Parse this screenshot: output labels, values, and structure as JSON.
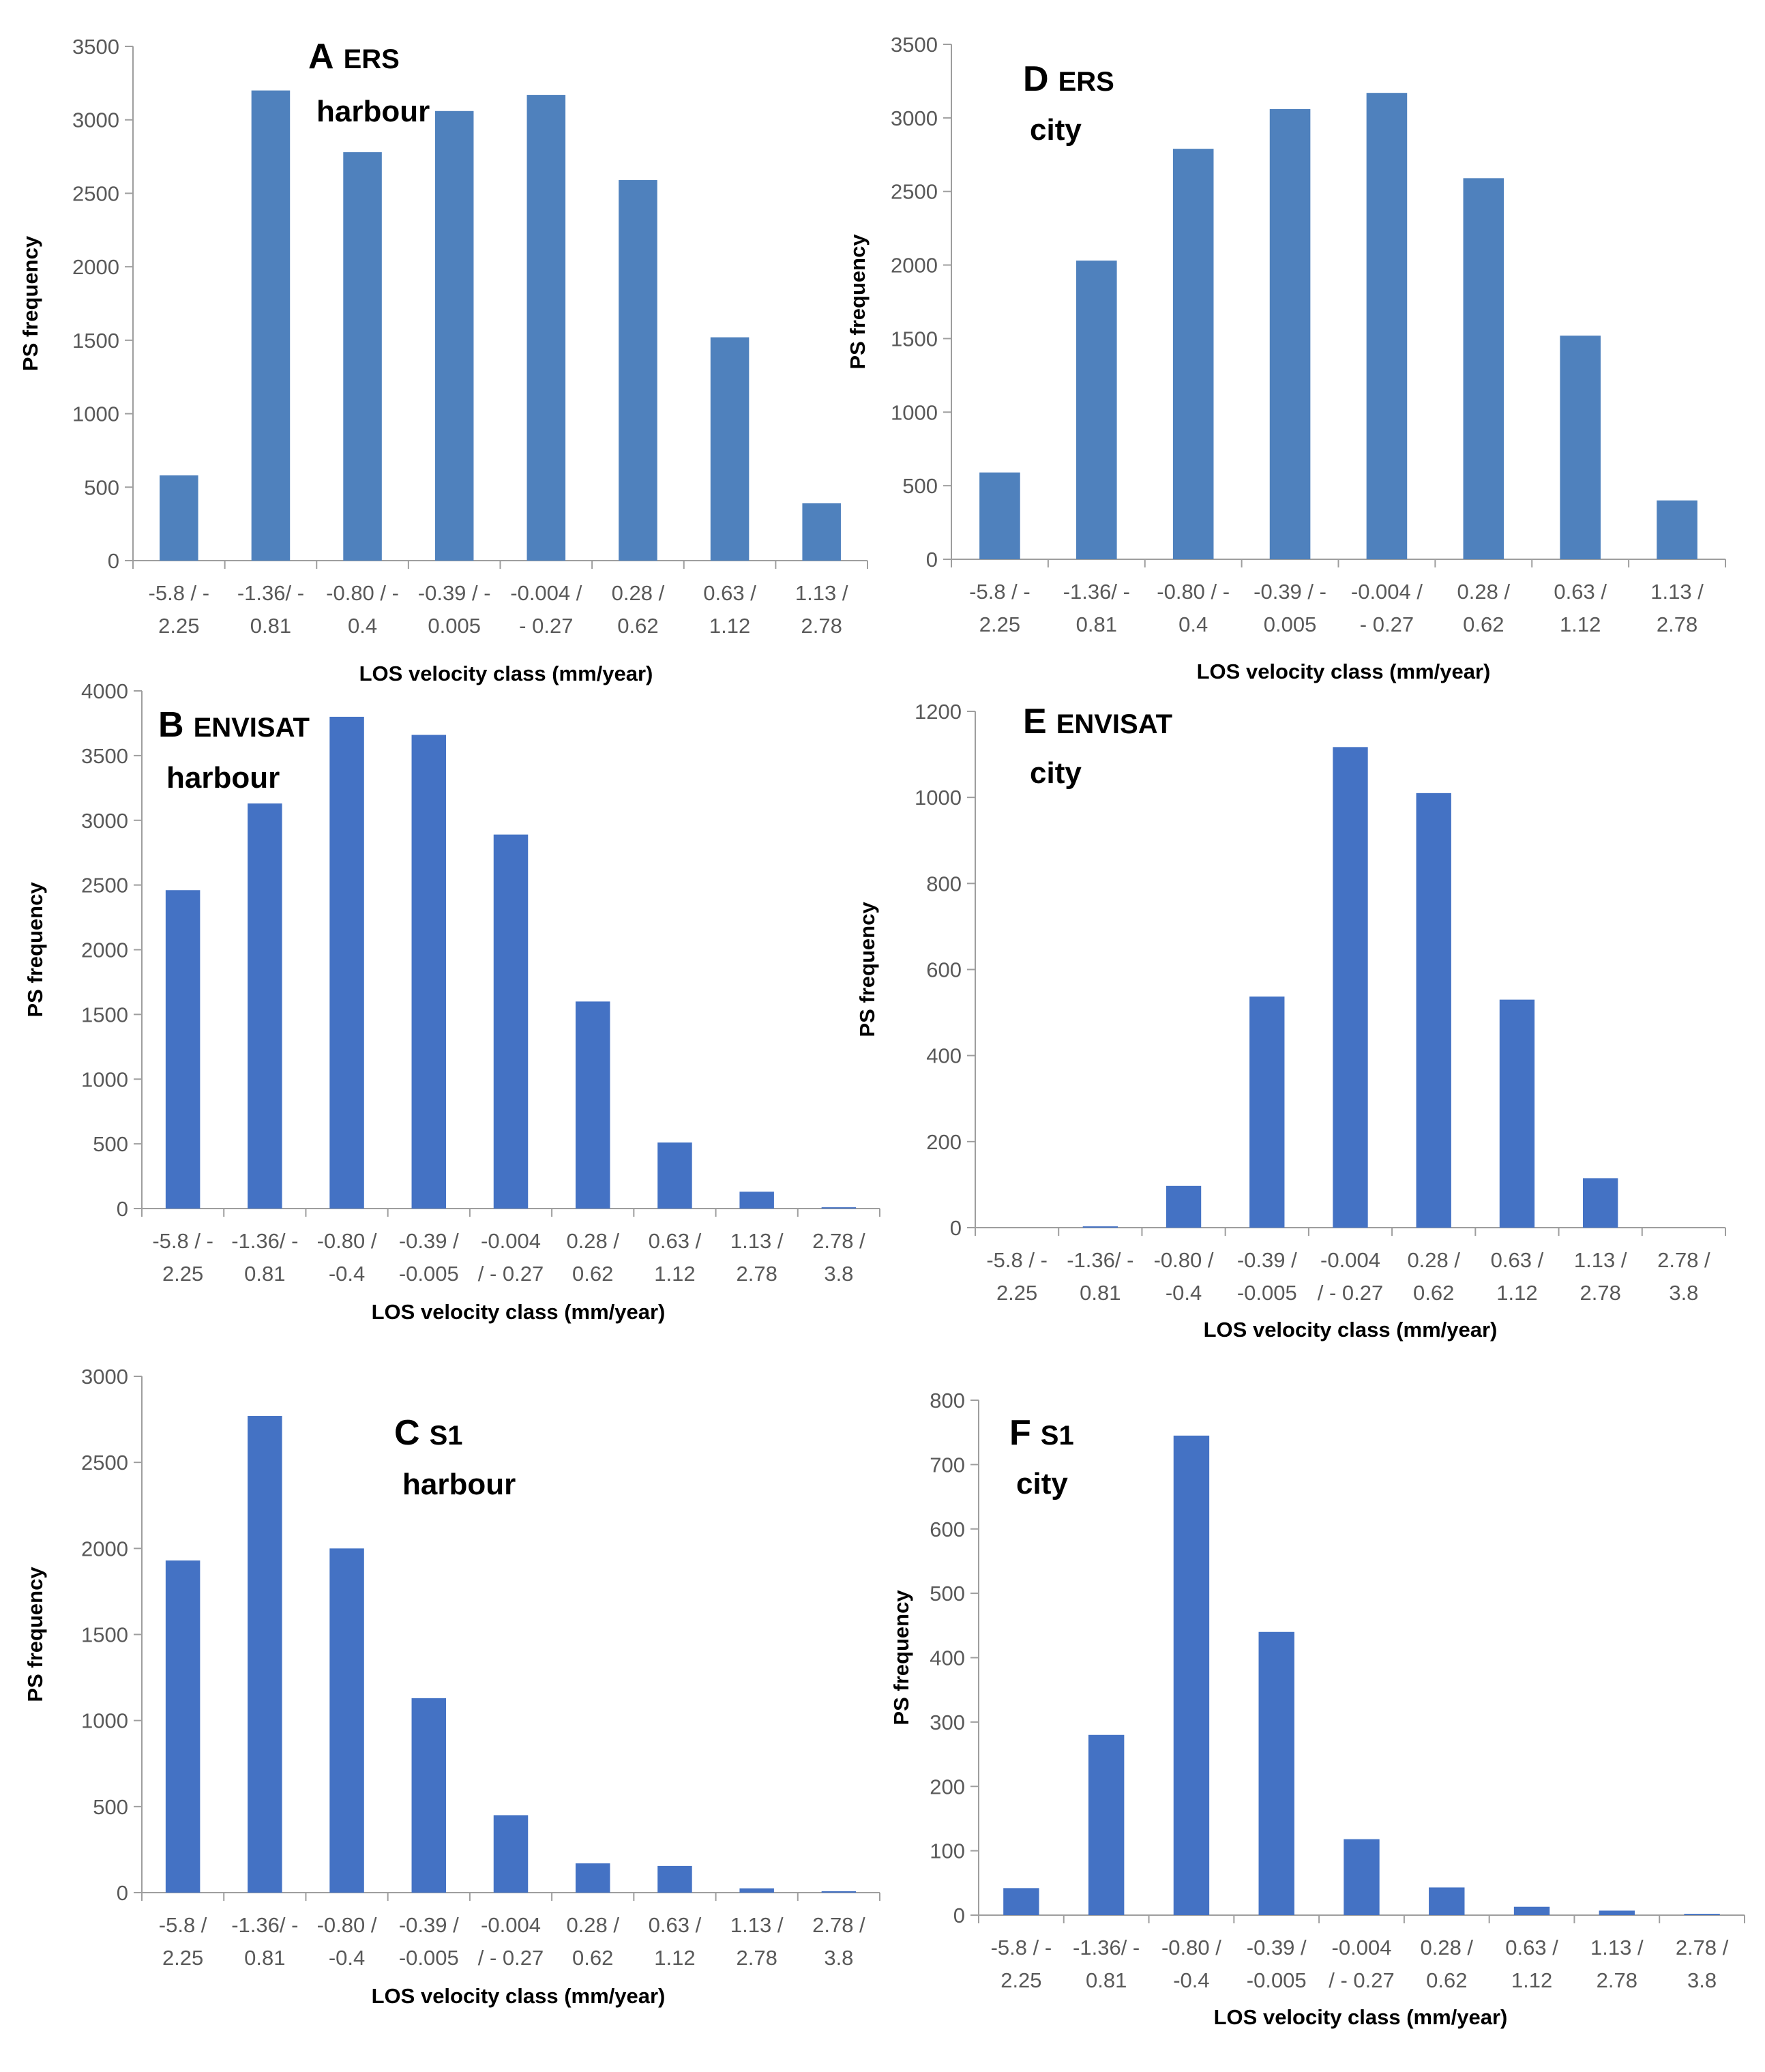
{
  "chart_data": [
    {
      "type": "bar",
      "panel_letter": "A",
      "panel_sensor": "ERS",
      "panel_region": "harbour",
      "ylabel": "PS frequency",
      "xlabel": "LOS velocity class (mm/year)",
      "ylim": [
        0,
        3500
      ],
      "yticks": [
        "0",
        "500",
        "1000",
        "1500",
        "2000",
        "2500",
        "3000",
        "3500"
      ],
      "categories": [
        [
          "-5.8 / -",
          "2.25"
        ],
        [
          "-1.36/ -",
          "0.81"
        ],
        [
          "-0.80 / -",
          "0.4"
        ],
        [
          "-0.39 / -",
          "0.005"
        ],
        [
          "-0.004 /",
          "- 0.27"
        ],
        [
          "0.28 /",
          "0.62"
        ],
        [
          "0.63 /",
          "1.12"
        ],
        [
          "1.13 /",
          "2.78"
        ]
      ],
      "values": [
        580,
        3200,
        2780,
        3060,
        3170,
        2590,
        1520,
        390
      ],
      "bar_color": "#4f81bd"
    },
    {
      "type": "bar",
      "panel_letter": "B",
      "panel_sensor": "ENVISAT",
      "panel_region": "harbour",
      "ylabel": "PS frequency",
      "xlabel": "LOS velocity class (mm/year)",
      "ylim": [
        0,
        4000
      ],
      "yticks": [
        "0",
        "500",
        "1000",
        "1500",
        "2000",
        "2500",
        "3000",
        "3500",
        "4000"
      ],
      "categories": [
        [
          "-5.8 / -",
          "2.25"
        ],
        [
          "-1.36/ -",
          "0.81"
        ],
        [
          "-0.80 /",
          "-0.4"
        ],
        [
          "-0.39 /",
          "-0.005"
        ],
        [
          "-0.004",
          "/ - 0.27"
        ],
        [
          "0.28 /",
          "0.62"
        ],
        [
          "0.63 /",
          "1.12"
        ],
        [
          "1.13 /",
          "2.78"
        ],
        [
          "2.78 /",
          "3.8"
        ]
      ],
      "values": [
        2460,
        3130,
        3800,
        3660,
        2890,
        1600,
        510,
        130,
        10
      ],
      "bar_color": "#4472c4"
    },
    {
      "type": "bar",
      "panel_letter": "C",
      "panel_sensor": "S1",
      "panel_region": "harbour",
      "ylabel": "PS frequency",
      "xlabel": "LOS velocity class (mm/year)",
      "ylim": [
        0,
        3000
      ],
      "yticks": [
        "0",
        "500",
        "1000",
        "1500",
        "2000",
        "2500",
        "3000"
      ],
      "categories": [
        [
          "-5.8 /",
          "2.25"
        ],
        [
          "-1.36/ -",
          "0.81"
        ],
        [
          "-0.80 /",
          "-0.4"
        ],
        [
          "-0.39 /",
          "-0.005"
        ],
        [
          "-0.004",
          "/ - 0.27"
        ],
        [
          "0.28 /",
          "0.62"
        ],
        [
          "0.63 /",
          "1.12"
        ],
        [
          "1.13 /",
          "2.78"
        ],
        [
          "2.78 /",
          "3.8"
        ]
      ],
      "values": [
        1930,
        2770,
        2000,
        1130,
        450,
        170,
        155,
        25,
        8
      ],
      "bar_color": "#4472c4"
    },
    {
      "type": "bar",
      "panel_letter": "D",
      "panel_sensor": "ERS",
      "panel_region": "city",
      "ylabel": "PS frequency",
      "xlabel": "LOS velocity class (mm/year)",
      "ylim": [
        0,
        3500
      ],
      "yticks": [
        "0",
        "500",
        "1000",
        "1500",
        "2000",
        "2500",
        "3000",
        "3500"
      ],
      "categories": [
        [
          "-5.8 / -",
          "2.25"
        ],
        [
          "-1.36/ -",
          "0.81"
        ],
        [
          "-0.80 / -",
          "0.4"
        ],
        [
          "-0.39 / -",
          "0.005"
        ],
        [
          "-0.004 /",
          "- 0.27"
        ],
        [
          "0.28 /",
          "0.62"
        ],
        [
          "0.63 /",
          "1.12"
        ],
        [
          "1.13 /",
          "2.78"
        ]
      ],
      "values": [
        590,
        2030,
        2790,
        3060,
        3170,
        2590,
        1520,
        400
      ],
      "bar_color": "#4f81bd"
    },
    {
      "type": "bar",
      "panel_letter": "E",
      "panel_sensor": "ENVISAT",
      "panel_region": "city",
      "ylabel": "PS frequency",
      "xlabel": "LOS velocity class (mm/year)",
      "ylim": [
        0,
        1200
      ],
      "yticks": [
        "0",
        "200",
        "400",
        "600",
        "800",
        "1000",
        "1200"
      ],
      "categories": [
        [
          "-5.8 / -",
          "2.25"
        ],
        [
          "-1.36/ -",
          "0.81"
        ],
        [
          "-0.80 /",
          "-0.4"
        ],
        [
          "-0.39 /",
          "-0.005"
        ],
        [
          "-0.004",
          "/ - 0.27"
        ],
        [
          "0.28 /",
          "0.62"
        ],
        [
          "0.63 /",
          "1.12"
        ],
        [
          "1.13 /",
          "2.78"
        ],
        [
          "2.78 /",
          "3.8"
        ]
      ],
      "values": [
        0,
        3,
        97,
        537,
        1117,
        1010,
        530,
        115,
        0
      ],
      "bar_color": "#4472c4"
    },
    {
      "type": "bar",
      "panel_letter": "F",
      "panel_sensor": "S1",
      "panel_region": "city",
      "ylabel": "PS frequency",
      "xlabel": "LOS velocity class (mm/year)",
      "ylim": [
        0,
        800
      ],
      "yticks": [
        "0",
        "100",
        "200",
        "300",
        "400",
        "500",
        "600",
        "700",
        "800"
      ],
      "categories": [
        [
          "-5.8 / -",
          "2.25"
        ],
        [
          "-1.36/ -",
          "0.81"
        ],
        [
          "-0.80 /",
          "-0.4"
        ],
        [
          "-0.39 /",
          "-0.005"
        ],
        [
          "-0.004",
          "/ - 0.27"
        ],
        [
          "0.28 /",
          "0.62"
        ],
        [
          "0.63 /",
          "1.12"
        ],
        [
          "1.13 /",
          "2.78"
        ],
        [
          "2.78 /",
          "3.8"
        ]
      ],
      "values": [
        42,
        280,
        745,
        440,
        118,
        43,
        13,
        7,
        2
      ],
      "bar_color": "#4472c4"
    }
  ]
}
